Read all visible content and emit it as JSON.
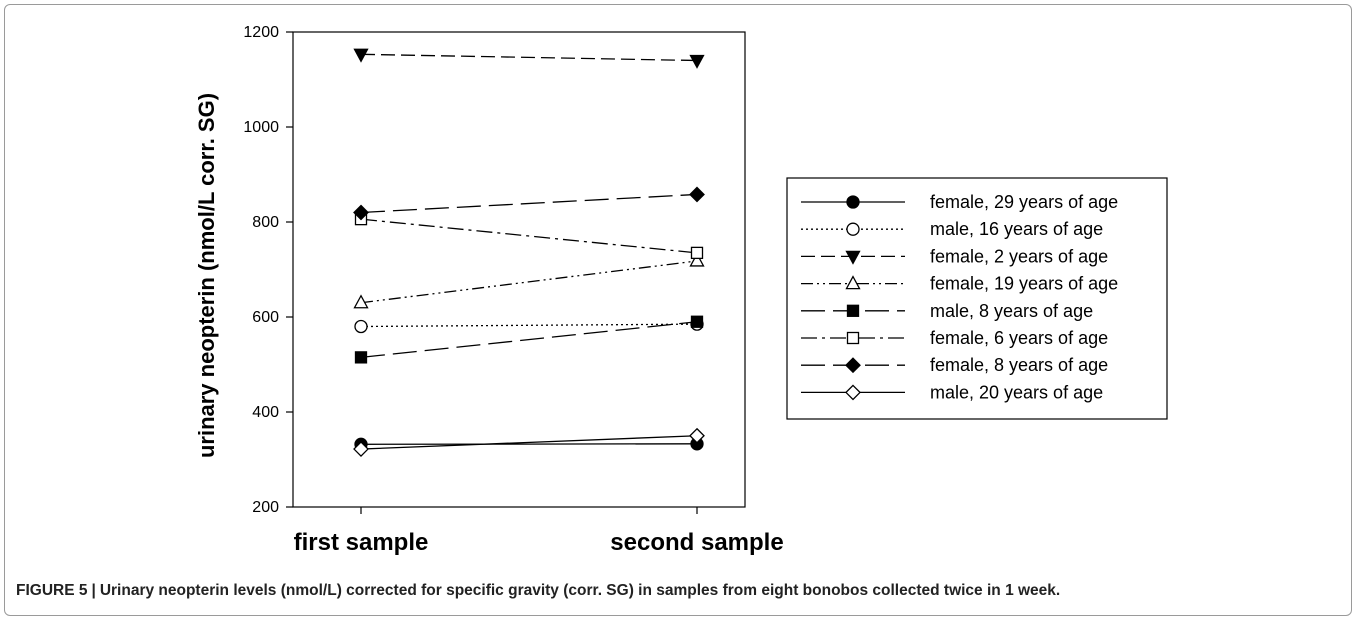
{
  "caption": {
    "figure_label": "FIGURE 5",
    "text": "Urinary neopterin levels (nmol/L) corrected for specific gravity (corr. SG) in samples from eight bonobos collected twice in 1 week."
  },
  "chart_data": {
    "type": "line",
    "categories": [
      "first sample",
      "second sample"
    ],
    "ylabel": "urinary neopterin (nmol/L corr. SG)",
    "xlabel": "",
    "ylim": [
      200,
      1200
    ],
    "yticks": [
      200,
      400,
      600,
      800,
      1000,
      1200
    ],
    "grid": false,
    "legend_position": "right",
    "series": [
      {
        "name": "female, 29 years of age",
        "values": [
          332,
          333
        ],
        "marker": "circle",
        "filled": true,
        "dash": "solid"
      },
      {
        "name": "male, 16 years of age",
        "values": [
          580,
          585
        ],
        "marker": "circle",
        "filled": false,
        "dash": "dotted"
      },
      {
        "name": "female, 2 years of age",
        "values": [
          1153,
          1140
        ],
        "marker": "triangle-down",
        "filled": true,
        "dash": "dashed"
      },
      {
        "name": "female, 19 years of age",
        "values": [
          630,
          718
        ],
        "marker": "triangle-up",
        "filled": false,
        "dash": "dash-dot-dot"
      },
      {
        "name": "male, 8 years of age",
        "values": [
          515,
          590
        ],
        "marker": "square",
        "filled": true,
        "dash": "long-dash"
      },
      {
        "name": "female, 6 years of age",
        "values": [
          806,
          735
        ],
        "marker": "square",
        "filled": false,
        "dash": "dash-dot"
      },
      {
        "name": "female, 8 years of age",
        "values": [
          820,
          858
        ],
        "marker": "diamond",
        "filled": true,
        "dash": "long-dash"
      },
      {
        "name": "male, 20 years of age",
        "values": [
          322,
          350
        ],
        "marker": "diamond",
        "filled": false,
        "dash": "solid"
      }
    ]
  }
}
